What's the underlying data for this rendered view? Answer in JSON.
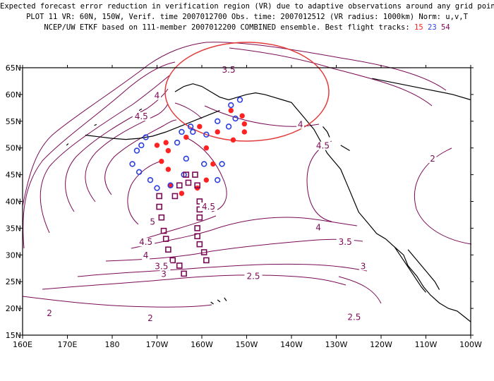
{
  "title": {
    "line1": "Expected forecast error reduction in verification region (VR) due to adaptive observations around any grid point.",
    "line2": "PLOT 11 VR: 60N, 150W, Verif. time 2007012700 Obs. time: 2007012512 (VR radius: 1000km) Norm: u,v,T",
    "line3_prefix": "NCEP/UW ETKF based on 111-member 2007012200 COMBINED ensemble.  Best flight tracks:",
    "track1": "15",
    "track2": "23",
    "track3": "54"
  },
  "map": {
    "lon_range": [
      160,
      260
    ],
    "lat_range": [
      15,
      65
    ],
    "x_tick_labels": [
      "160E",
      "170E",
      "180",
      "170W",
      "160W",
      "150W",
      "140W",
      "130W",
      "120W",
      "110W",
      "100W"
    ],
    "y_tick_labels": [
      "15N",
      "20N",
      "25N",
      "30N",
      "35N",
      "40N",
      "45N",
      "50N",
      "55N",
      "60N",
      "65N"
    ],
    "colors": {
      "contour": "#7a0a55",
      "track15": "#ff2222",
      "track23": "#2b3fe0",
      "track54": "#7a0a55",
      "vr_circle": "#e33b3b",
      "coast": "#000000"
    },
    "verification_region": {
      "center_lat": 60,
      "center_lon": 210,
      "radius_km": 1000
    },
    "contour_labels": [
      {
        "text": "3.5",
        "lon": 206,
        "lat": 64.2
      },
      {
        "text": "4",
        "lon": 190,
        "lat": 59.4
      },
      {
        "text": "4.5",
        "lon": 186.5,
        "lat": 55.5
      },
      {
        "text": "4",
        "lon": 222,
        "lat": 54.0
      },
      {
        "text": "4.5",
        "lon": 227,
        "lat": 50.0
      },
      {
        "text": "2",
        "lon": 251.5,
        "lat": 47.6
      },
      {
        "text": "4.5",
        "lon": 201.5,
        "lat": 38.6
      },
      {
        "text": "5",
        "lon": 189,
        "lat": 35.8
      },
      {
        "text": "4.5",
        "lon": 187.5,
        "lat": 32.0
      },
      {
        "text": "4",
        "lon": 187.5,
        "lat": 29.5
      },
      {
        "text": "4",
        "lon": 226,
        "lat": 34.7
      },
      {
        "text": "3.5",
        "lon": 232,
        "lat": 32.0
      },
      {
        "text": "3",
        "lon": 236,
        "lat": 27.5
      },
      {
        "text": "3.5",
        "lon": 191,
        "lat": 27.5
      },
      {
        "text": "3",
        "lon": 191.5,
        "lat": 26.0
      },
      {
        "text": "2.5",
        "lon": 211.5,
        "lat": 25.6
      },
      {
        "text": "2.5",
        "lon": 234,
        "lat": 18.0
      },
      {
        "text": "2",
        "lon": 166,
        "lat": 18.7
      },
      {
        "text": "2",
        "lon": 188.5,
        "lat": 17.8
      }
    ],
    "track15_points": [
      {
        "lon": 206.5,
        "lat": 57.0
      },
      {
        "lon": 209.0,
        "lat": 56.0
      },
      {
        "lon": 209.5,
        "lat": 54.5
      },
      {
        "lon": 209.5,
        "lat": 53.0
      },
      {
        "lon": 207.0,
        "lat": 51.5
      },
      {
        "lon": 203.5,
        "lat": 53.0
      },
      {
        "lon": 199.5,
        "lat": 54.0
      },
      {
        "lon": 196.5,
        "lat": 52.0
      },
      {
        "lon": 201.0,
        "lat": 50.0
      },
      {
        "lon": 202.5,
        "lat": 47.0
      },
      {
        "lon": 201.0,
        "lat": 44.0
      },
      {
        "lon": 199.0,
        "lat": 42.5
      },
      {
        "lon": 195.5,
        "lat": 41.5
      },
      {
        "lon": 193.0,
        "lat": 43.0
      },
      {
        "lon": 192.5,
        "lat": 46.0
      },
      {
        "lon": 191.0,
        "lat": 47.5
      },
      {
        "lon": 192.5,
        "lat": 49.5
      },
      {
        "lon": 192.0,
        "lat": 51.0
      },
      {
        "lon": 190.0,
        "lat": 50.5
      }
    ],
    "track23_points": [
      {
        "lon": 208.5,
        "lat": 59.0
      },
      {
        "lon": 206.5,
        "lat": 58.0
      },
      {
        "lon": 207.5,
        "lat": 55.5
      },
      {
        "lon": 206.0,
        "lat": 54.0
      },
      {
        "lon": 203.5,
        "lat": 55.0
      },
      {
        "lon": 201.0,
        "lat": 52.5
      },
      {
        "lon": 198.0,
        "lat": 53.0
      },
      {
        "lon": 197.5,
        "lat": 54.0
      },
      {
        "lon": 195.5,
        "lat": 53.0
      },
      {
        "lon": 194.5,
        "lat": 51.0
      },
      {
        "lon": 196.5,
        "lat": 48.0
      },
      {
        "lon": 200.5,
        "lat": 47.0
      },
      {
        "lon": 204.5,
        "lat": 47.0
      },
      {
        "lon": 203.5,
        "lat": 44.0
      },
      {
        "lon": 196.0,
        "lat": 45.0
      },
      {
        "lon": 193.0,
        "lat": 43.0
      },
      {
        "lon": 190.0,
        "lat": 42.5
      },
      {
        "lon": 188.5,
        "lat": 44.0
      },
      {
        "lon": 186.0,
        "lat": 45.5
      },
      {
        "lon": 184.5,
        "lat": 47.0
      },
      {
        "lon": 185.5,
        "lat": 49.5
      },
      {
        "lon": 186.5,
        "lat": 50.5
      },
      {
        "lon": 187.5,
        "lat": 52.0
      }
    ],
    "track54_points": [
      {
        "lon": 196.5,
        "lat": 45.0
      },
      {
        "lon": 198.5,
        "lat": 45.0
      },
      {
        "lon": 199.0,
        "lat": 43.0
      },
      {
        "lon": 197.0,
        "lat": 43.5
      },
      {
        "lon": 195.0,
        "lat": 43.0
      },
      {
        "lon": 194.0,
        "lat": 41.0
      },
      {
        "lon": 190.5,
        "lat": 41.0
      },
      {
        "lon": 190.5,
        "lat": 39.0
      },
      {
        "lon": 191.0,
        "lat": 37.0
      },
      {
        "lon": 191.5,
        "lat": 34.5
      },
      {
        "lon": 192.0,
        "lat": 33.0
      },
      {
        "lon": 192.5,
        "lat": 31.0
      },
      {
        "lon": 193.5,
        "lat": 29.0
      },
      {
        "lon": 195.0,
        "lat": 28.0
      },
      {
        "lon": 196.0,
        "lat": 26.5
      },
      {
        "lon": 199.5,
        "lat": 40.0
      },
      {
        "lon": 199.5,
        "lat": 38.5
      },
      {
        "lon": 199.5,
        "lat": 37.0
      },
      {
        "lon": 199.0,
        "lat": 35.0
      },
      {
        "lon": 199.0,
        "lat": 33.5
      },
      {
        "lon": 199.5,
        "lat": 32.0
      },
      {
        "lon": 200.5,
        "lat": 30.5
      },
      {
        "lon": 201.0,
        "lat": 29.0
      }
    ]
  }
}
